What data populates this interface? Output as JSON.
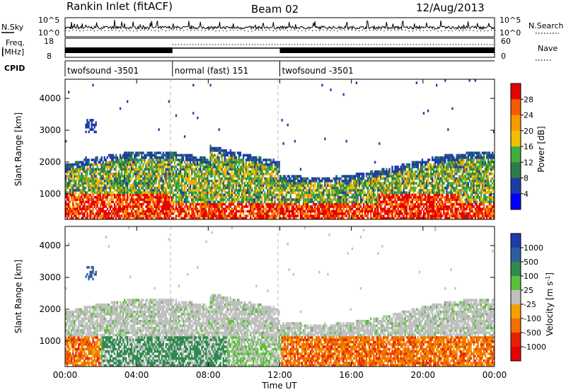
{
  "header": {
    "title": "Rankin Inlet (fitACF)",
    "beam": "Beam 02",
    "date": "12/Aug/2013"
  },
  "top_panels": {
    "nsky_label": "N.Sky",
    "nsky_ticks": [
      "10^5",
      "10^0"
    ],
    "nsearch_label": "N.Search",
    "nsearch_ticks": [
      "10^5",
      "10^0"
    ],
    "freq_label": "Freq.",
    "freq_unit": "[MHz]",
    "freq_ticks": [
      "18",
      "8"
    ],
    "nave_label": "Nave",
    "nave_ticks": [
      "60",
      "0"
    ],
    "cpid_label": "CPID",
    "cpid_segments": [
      {
        "label": "twofsound -3501",
        "start_h": 0,
        "end_h": 6
      },
      {
        "label": "normal (fast) 151",
        "start_h": 6,
        "end_h": 12
      },
      {
        "label": "twofsound -3501",
        "start_h": 12,
        "end_h": 24
      }
    ]
  },
  "colors": {
    "power_scale": [
      "#0000ff",
      "#1e3ca8",
      "#2e7d46",
      "#3fae3f",
      "#f0c000",
      "#f59a00",
      "#f55a00",
      "#e60000"
    ],
    "velocity_scale": [
      "#1e3ca8",
      "#2e5ea0",
      "#2e8a4e",
      "#5ac03a",
      "#c0c0c0",
      "#f5a000",
      "#f07000",
      "#e82000",
      "#e60000"
    ],
    "ground_scatter": "#c0c0c0"
  },
  "chart_data": [
    {
      "type": "heatmap",
      "name": "power",
      "ylabel": "Slant Range [km]",
      "xlabel": "",
      "xlim": [
        0,
        24
      ],
      "ylim": [
        200,
        4600
      ],
      "x_ticks": [
        "00:00",
        "04:00",
        "08:00",
        "12:00",
        "16:00",
        "20:00",
        "00:00"
      ],
      "y_ticks": [
        1000,
        2000,
        3000,
        4000
      ],
      "colorbar": {
        "label": "Power [dB]",
        "ticks": [
          "4",
          "8",
          "12",
          "16",
          "20",
          "24",
          "28"
        ],
        "range": [
          0,
          32
        ]
      },
      "description_regions": [
        {
          "t_range": [
            0,
            6
          ],
          "range_km": [
            300,
            900
          ],
          "value_db": 26
        },
        {
          "t_range": [
            0,
            6
          ],
          "range_km": [
            900,
            1900
          ],
          "value_db": 14
        },
        {
          "t_range": [
            6,
            12
          ],
          "range_km": [
            500,
            1400
          ],
          "value_db": 22
        },
        {
          "t_range": [
            6,
            12
          ],
          "range_km": [
            1400,
            2300
          ],
          "value_db": 10
        },
        {
          "t_range": [
            12,
            18
          ],
          "range_km": [
            700,
            1800
          ],
          "value_db": 14
        },
        {
          "t_range": [
            18,
            22
          ],
          "range_km": [
            300,
            1200
          ],
          "value_db": 24
        },
        {
          "t_range": [
            22,
            24
          ],
          "range_km": [
            300,
            2100
          ],
          "value_db": 12
        }
      ]
    },
    {
      "type": "heatmap",
      "name": "velocity",
      "ylabel": "Slant Range [km]",
      "xlabel": "Time UT",
      "xlim": [
        0,
        24
      ],
      "ylim": [
        200,
        4600
      ],
      "x_ticks": [
        "00:00",
        "04:00",
        "08:00",
        "12:00",
        "16:00",
        "20:00",
        "00:00"
      ],
      "y_ticks": [
        1000,
        2000,
        3000,
        4000
      ],
      "colorbar": {
        "label": "Velocity [m s",
        "label_exp": "-1",
        "label_close": "]",
        "ticks": [
          "1000",
          "500",
          "100",
          "25",
          "-25",
          "-100",
          "-500",
          "-1000"
        ],
        "range": [
          -1250,
          1250
        ]
      },
      "description_regions": [
        {
          "t_range": [
            0,
            2
          ],
          "range_km": [
            300,
            1000
          ],
          "value_ms": -200
        },
        {
          "t_range": [
            2,
            8
          ],
          "range_km": [
            300,
            1100
          ],
          "value_ms": 150
        },
        {
          "t_range": [
            0,
            24
          ],
          "range_km": [
            1000,
            2300
          ],
          "value_ms": 0
        },
        {
          "t_range": [
            12,
            18
          ],
          "range_km": [
            500,
            1100
          ],
          "value_ms": -150
        },
        {
          "t_range": [
            18,
            23
          ],
          "range_km": [
            300,
            1400
          ],
          "value_ms": -300
        }
      ]
    }
  ]
}
